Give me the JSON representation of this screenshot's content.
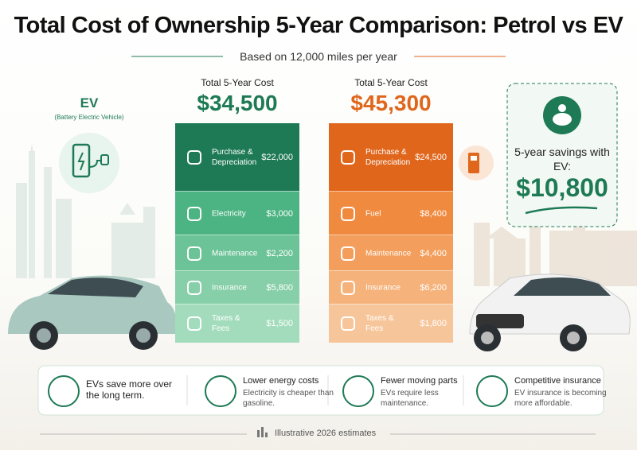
{
  "header": {
    "title": "Total Cost of Ownership 5-Year Comparison: Petrol vs EV",
    "subtitle": "Based on 12,000 miles per year"
  },
  "ev": {
    "label": "EV",
    "sublabel": "(Battery Electric Vehicle)",
    "total_label": "Total 5-Year Cost",
    "total": "$34,500",
    "items": [
      {
        "label": "Purchase & Depreciation",
        "value": "$22,000"
      },
      {
        "label": "Electricity",
        "value": "$3,000"
      },
      {
        "label": "Maintenance",
        "value": "$2,200"
      },
      {
        "label": "Insurance",
        "value": "$5,800"
      },
      {
        "label": "Taxes & Fees",
        "value": "$1,500"
      }
    ]
  },
  "petrol": {
    "total_label": "Total 5-Year Cost",
    "total": "$45,300",
    "items": [
      {
        "label": "Purchase & Depreciation",
        "value": "$24,500"
      },
      {
        "label": "Fuel",
        "value": "$8,400"
      },
      {
        "label": "Maintenance",
        "value": "$4,400"
      },
      {
        "label": "Insurance",
        "value": "$6,200"
      },
      {
        "label": "Taxes & Fees",
        "value": "$1,800"
      }
    ]
  },
  "savings": {
    "label": "5-year savings with EV:",
    "value": "$10,800"
  },
  "benefits": [
    {
      "title": "EVs save more over the long term.",
      "text": ""
    },
    {
      "title": "Lower energy costs",
      "text": "Electricity is cheaper than gasoline."
    },
    {
      "title": "Fewer moving parts",
      "text": "EVs require less maintenance."
    },
    {
      "title": "Competitive insurance",
      "text": "EV insurance is becoming more affordable."
    }
  ],
  "footer": {
    "note": "Illustrative 2026 estimates"
  }
}
